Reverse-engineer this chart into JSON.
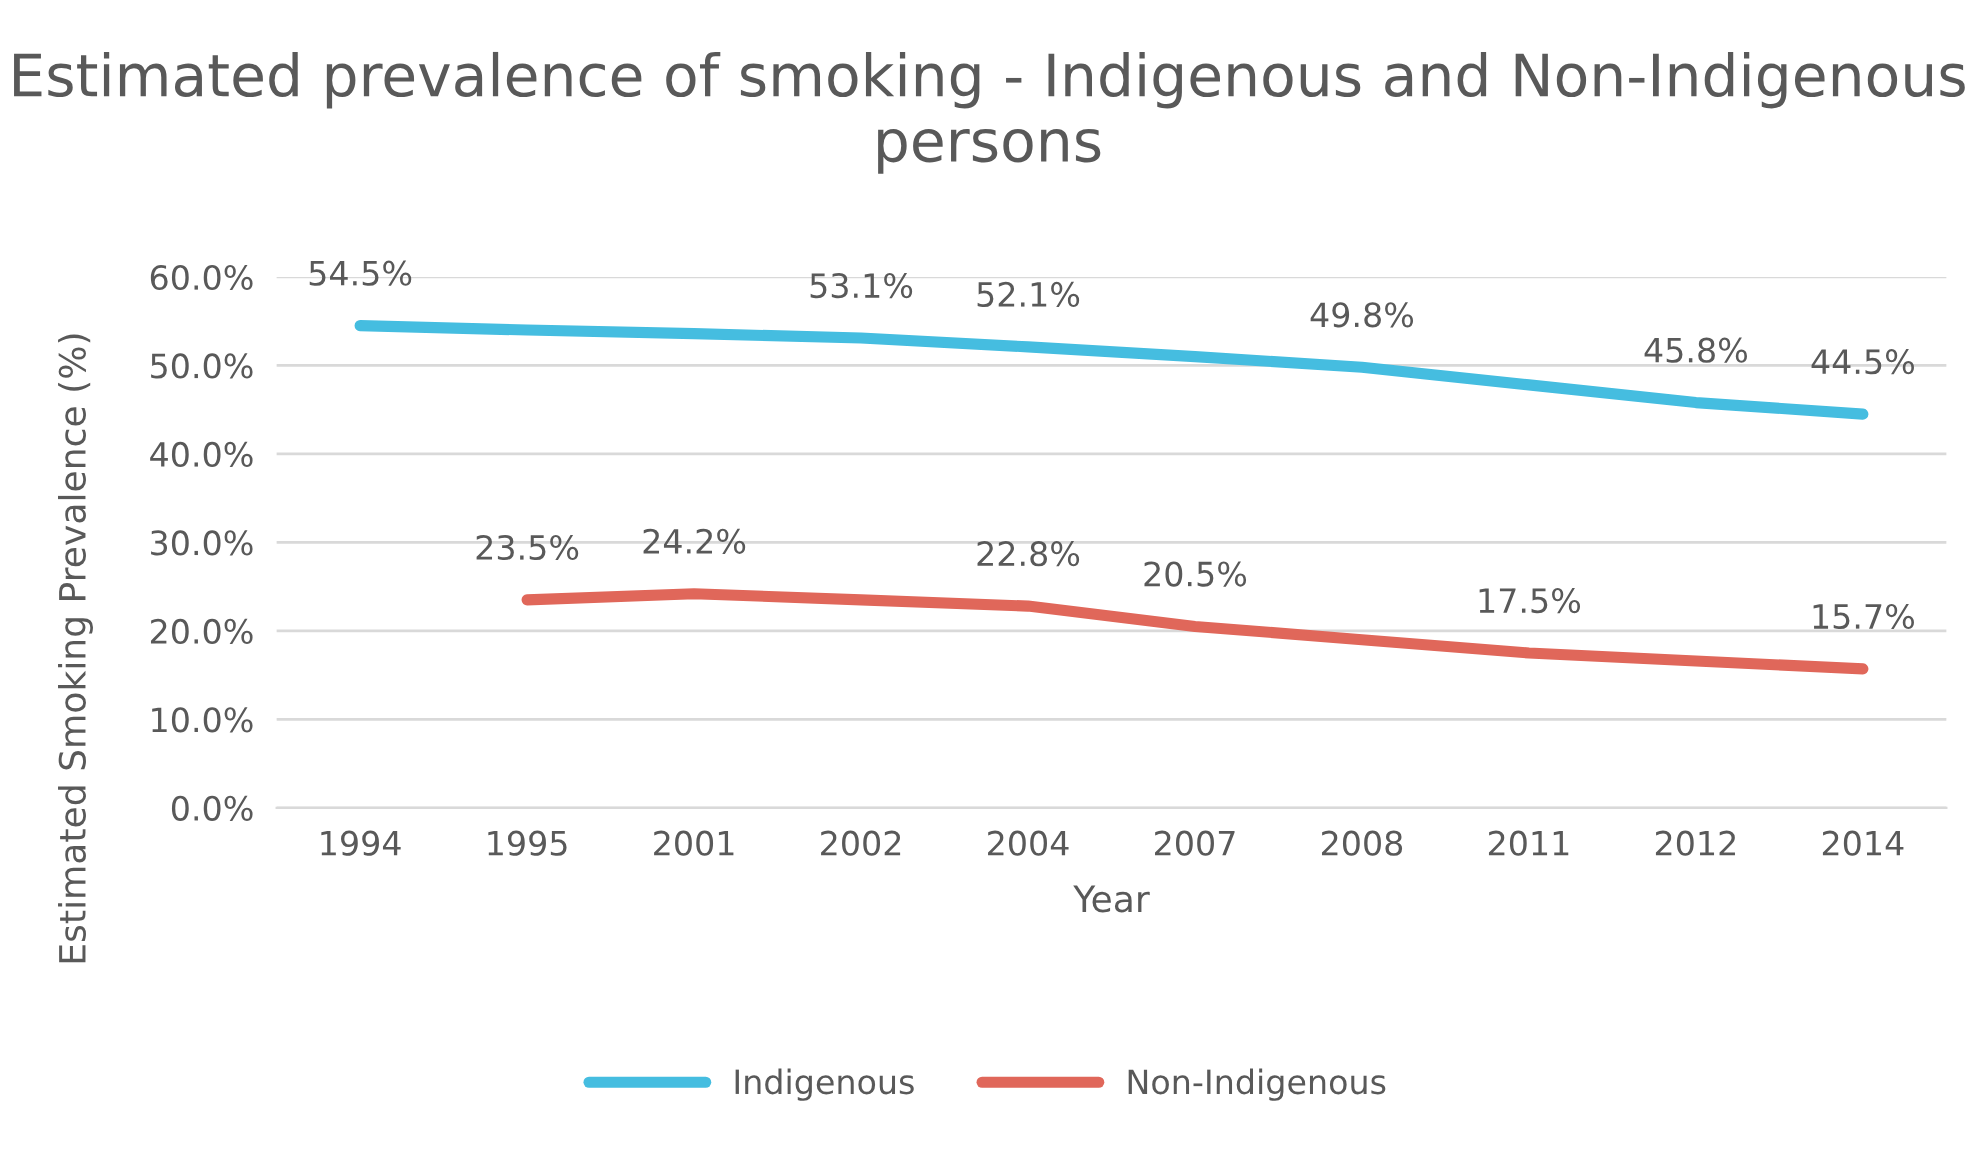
{
  "chart_data": {
    "type": "line",
    "title": "Estimated prevalence of smoking - Indigenous and Non-Indigenous persons",
    "xlabel": "Year",
    "ylabel": "Estimated Smoking Prevalence (%)",
    "categories": [
      "1994",
      "1995",
      "2001",
      "2002",
      "2004",
      "2007",
      "2008",
      "2011",
      "2012",
      "2014"
    ],
    "series": [
      {
        "name": "Indigenous",
        "color": "#45bde0",
        "values": [
          54.5,
          54.0,
          53.6,
          53.1,
          52.1,
          51.0,
          49.8,
          47.8,
          45.8,
          44.5
        ],
        "value_labels": [
          "54.5%",
          null,
          null,
          "53.1%",
          "52.1%",
          null,
          "49.8%",
          null,
          "45.8%",
          "44.5%"
        ]
      },
      {
        "name": "Non-Indigenous",
        "color": "#e0675a",
        "values": [
          null,
          23.5,
          24.2,
          23.5,
          22.8,
          20.5,
          19.0,
          17.5,
          16.6,
          15.7
        ],
        "value_labels": [
          null,
          "23.5%",
          "24.2%",
          null,
          "22.8%",
          "20.5%",
          null,
          "17.5%",
          null,
          "15.7%"
        ]
      }
    ],
    "ylim": [
      0,
      60
    ],
    "yticks": [
      {
        "value": 0,
        "label": "0.0%"
      },
      {
        "value": 10,
        "label": "10.0%"
      },
      {
        "value": 20,
        "label": "20.0%"
      },
      {
        "value": 30,
        "label": "30.0%"
      },
      {
        "value": 40,
        "label": "40.0%"
      },
      {
        "value": 50,
        "label": "50.0%"
      },
      {
        "value": 60,
        "label": "60.0%"
      }
    ],
    "grid": "y",
    "legend": "bottom",
    "marker": "none",
    "line_style": "solid"
  }
}
